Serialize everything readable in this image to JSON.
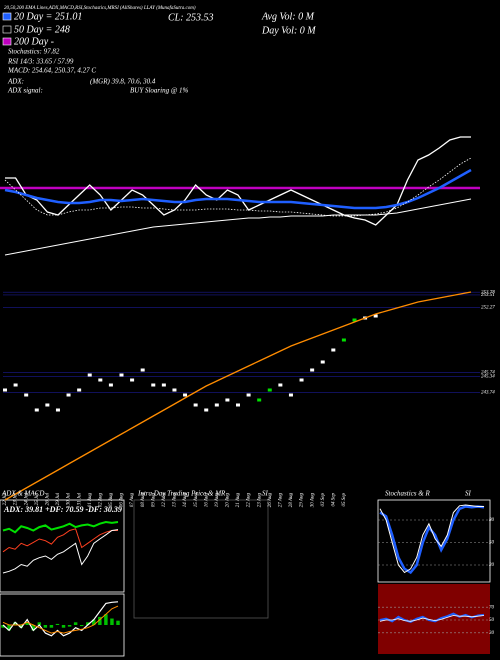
{
  "header": {
    "caption": "20,50,200 EMA Lines,ADX,MACD,RSI,Stochastics,MRSI (AllShares) LLAY (MunafaSutra.com)",
    "ema20": "20 Day = 251.01",
    "ema50": "50 Day = 248",
    "ema200": "200 Day -",
    "stochastics": "Stochastics: 97.82",
    "rsi": "RSI 14/3: 33.65 / 57.99",
    "macd": "MACD: 254.64, 250.37, 4.27 C",
    "adx": "ADX:",
    "adx_values": "(MGR) 39.8, 70.6, 30.4",
    "adx_signal": "ADX  signal:",
    "signal": "BUY Sloaring @ 1%",
    "close": "CL: 253.53",
    "avg_vol": "Avg Vol: 0  M",
    "day_vol": "Day Vol: 0  M"
  },
  "chart_data": [
    {
      "type": "line",
      "ylim": [
        243,
        258
      ],
      "reference_line": {
        "value": 250.2,
        "color": "#c000c0"
      },
      "series": [
        {
          "color": "#ffffff",
          "width": 1.3,
          "values": [
            251.2,
            251.2,
            249.5,
            249,
            247.8,
            247.5,
            248.5,
            249.5,
            250.5,
            249.5,
            248,
            249,
            250,
            249.5,
            248.5,
            247.5,
            248,
            249,
            250.5,
            249.5,
            249,
            250,
            249.5,
            248,
            248.5,
            249,
            249.5,
            250,
            249.5,
            249,
            248.5,
            248,
            247.5,
            247.2,
            247,
            246.5,
            247.5,
            248.5,
            251,
            253,
            253.5,
            254.2,
            255,
            255.3,
            255.3
          ]
        },
        {
          "color": "#1f5fff",
          "width": 2.5,
          "values": [
            250,
            249.8,
            249.5,
            249.2,
            249,
            248.8,
            248.7,
            248.7,
            248.8,
            249,
            249,
            248.9,
            249,
            249.1,
            249,
            248.9,
            248.8,
            248.8,
            249,
            249.1,
            249.1,
            249.1,
            249,
            248.9,
            248.8,
            248.8,
            248.8,
            248.8,
            248.7,
            248.6,
            248.5,
            248.4,
            248.3,
            248.2,
            248.2,
            248.2,
            248.3,
            248.5,
            248.8,
            249.2,
            249.7,
            250.2,
            250.8,
            251.4,
            252
          ]
        },
        {
          "color": "#ffffff",
          "width": 0.8,
          "dash": true,
          "values": [
            251,
            250,
            249,
            248,
            247.5,
            247.5,
            247.8,
            248,
            248,
            248.2,
            248.2,
            248.3,
            248.3,
            248.2,
            248.2,
            248.1,
            248,
            248,
            248,
            248.1,
            248.1,
            248.1,
            248,
            248,
            247.9,
            247.9,
            247.8,
            247.8,
            247.7,
            247.6,
            247.5,
            247.4,
            247.4,
            247.4,
            247.5,
            247.6,
            247.8,
            248.2,
            248.8,
            249.5,
            250.3,
            251,
            251.8,
            252.6,
            253.2
          ]
        },
        {
          "color": "#ffffff",
          "width": 1,
          "values": [
            243.5,
            243.7,
            243.9,
            244.1,
            244.3,
            244.5,
            244.7,
            244.9,
            245.1,
            245.3,
            245.5,
            245.7,
            245.9,
            246.1,
            246.3,
            246.4,
            246.5,
            246.6,
            246.7,
            246.8,
            246.9,
            247,
            247.1,
            247.2,
            247.2,
            247.3,
            247.3,
            247.4,
            247.4,
            247.4,
            247.4,
            247.5,
            247.5,
            247.5,
            247.5,
            247.5,
            247.6,
            247.7,
            247.9,
            248.1,
            248.3,
            248.5,
            248.7,
            248.9,
            249.1
          ]
        }
      ]
    },
    {
      "type": "line",
      "ylim": [
        234,
        256
      ],
      "yticks": [
        253.78,
        253.51,
        252.27,
        245.74,
        245.34,
        243.74
      ],
      "grid": true,
      "categories": [
        "22 Jul",
        "23 Jul",
        "24 Jul",
        "25 Jul",
        "26 Jul",
        "29 Jul",
        "30 Jul",
        "31 Jul",
        "01 Aug",
        "02 Aug",
        "05 Aug",
        "06 Aug",
        "07 Aug",
        "08 Aug",
        "09 Aug",
        "12 Aug",
        "13 Aug",
        "14 Aug",
        "15 Aug",
        "16 Aug",
        "19 Aug",
        "20 Aug",
        "21 Aug",
        "22 Aug",
        "23 Aug",
        "26 Aug",
        "27 Aug",
        "28 Aug",
        "29 Aug",
        "30 Aug",
        "03 Sep",
        "04 Sep",
        "05 Sep",
        null,
        null,
        null,
        null,
        null,
        null,
        null,
        null,
        null,
        null,
        null,
        null
      ],
      "series": [
        {
          "kind": "points",
          "colors": [
            "#fff",
            "#fff",
            "#fff",
            "#fff",
            "#fff",
            "#fff",
            "#fff",
            "#fff",
            "#fff",
            "#fff",
            "#fff",
            "#fff",
            "#fff",
            "#fff",
            "#fff",
            "#fff",
            "#fff",
            "#fff",
            "#fff",
            "#fff",
            "#fff",
            "#fff",
            "#fff",
            "#fff",
            "#00e000",
            "#00e000",
            "#fff",
            "#fff",
            "#fff",
            "#fff",
            "#fff",
            "#fff",
            "#00e000",
            "#00e000",
            "#fff",
            "#fff",
            null,
            null,
            null,
            null,
            null,
            null,
            null,
            null,
            null
          ],
          "values": [
            244,
            244.5,
            243.5,
            242,
            242.5,
            242,
            243.5,
            244,
            245.5,
            245,
            244.5,
            245.5,
            245,
            246,
            244.5,
            244.5,
            244,
            243.5,
            242.5,
            242,
            242.5,
            243,
            242.5,
            243.5,
            243,
            244,
            244.5,
            243.5,
            245,
            246,
            246.8,
            248,
            249,
            251,
            251.2,
            251.4,
            null,
            null,
            null,
            null,
            null,
            null,
            null,
            null,
            null
          ]
        },
        {
          "color": "#ff8c00",
          "width": 1.3,
          "values": [
            233,
            233.6,
            234.2,
            234.8,
            235.4,
            236,
            236.6,
            237.2,
            237.8,
            238.4,
            239,
            239.6,
            240.2,
            240.8,
            241.4,
            242,
            242.6,
            243.2,
            243.8,
            244.4,
            244.9,
            245.4,
            245.9,
            246.4,
            246.9,
            247.4,
            247.9,
            248.4,
            248.8,
            249.2,
            249.6,
            250,
            250.4,
            250.8,
            251.2,
            251.6,
            251.9,
            252.2,
            252.5,
            252.8,
            253,
            253.2,
            253.4,
            253.6,
            253.8
          ]
        }
      ]
    },
    {
      "type": "line",
      "title": "ADX  & MACD",
      "label": "ADX: 39.81 +DF: 70.59 -DF: 30.39",
      "ylim": [
        0,
        100
      ],
      "series": [
        {
          "color": "#00e000",
          "width": 2,
          "values": [
            70,
            72,
            68,
            75,
            73,
            70,
            74,
            76,
            71,
            73,
            75,
            78,
            74,
            76,
            77,
            75,
            78,
            80,
            79,
            80
          ]
        },
        {
          "color": "#ff4020",
          "width": 1,
          "values": [
            45,
            50,
            48,
            55,
            52,
            56,
            60,
            58,
            54,
            62,
            65,
            70,
            72,
            50,
            55,
            60,
            65,
            68,
            70,
            70
          ]
        },
        {
          "color": "#ffffff",
          "width": 1,
          "values": [
            20,
            22,
            25,
            30,
            28,
            35,
            38,
            40,
            36,
            42,
            45,
            50,
            55,
            30,
            40,
            55,
            60,
            65,
            70,
            71
          ]
        }
      ]
    },
    {
      "type": "line",
      "ylim": [
        -5,
        5
      ],
      "series": [
        {
          "kind": "bar",
          "color": "#00c000",
          "values": [
            -0.5,
            -1,
            0.5,
            -0.5,
            0.5,
            -1,
            0.5,
            -0.5,
            -0.5,
            0.2,
            -0.5,
            -0.3,
            0.5,
            -0.2,
            0.5,
            1,
            1.5,
            2,
            1.2,
            0.8
          ]
        },
        {
          "color": "#ffffff",
          "width": 1.2,
          "values": [
            0,
            -1,
            0.5,
            -0.5,
            1,
            -1,
            0,
            -1.5,
            -2,
            -1,
            -2,
            -1.5,
            -0.5,
            -1,
            0,
            1,
            2.5,
            4,
            4.2,
            4.3
          ]
        },
        {
          "color": "#ff8c00",
          "width": 1,
          "values": [
            0.5,
            0,
            0,
            0,
            0.5,
            0,
            -0.5,
            -1,
            -1.5,
            -1.2,
            -1.5,
            -1.2,
            -1,
            -0.8,
            -0.5,
            0,
            1,
            2,
            3,
            3.5
          ]
        }
      ]
    },
    {
      "type": "line",
      "title": "Intra Day Trading Price & MR",
      "title2": "SI",
      "series": []
    },
    {
      "type": "line",
      "title": "Stochastics & R",
      "title2": "SI",
      "ylim": [
        0,
        100
      ],
      "yticks": [
        80,
        50,
        20
      ],
      "grid": true,
      "series": [
        {
          "color": "#1f5fff",
          "width": 2.5,
          "values": [
            90,
            85,
            60,
            30,
            15,
            10,
            20,
            50,
            70,
            60,
            40,
            55,
            80,
            95,
            98,
            97,
            98,
            97
          ]
        },
        {
          "color": "#ffffff",
          "width": 1,
          "values": [
            95,
            80,
            50,
            20,
            10,
            15,
            30,
            60,
            75,
            55,
            45,
            60,
            90,
            99,
            100,
            99,
            98,
            98
          ]
        }
      ]
    },
    {
      "type": "line",
      "ylim": [
        0,
        100
      ],
      "yticks": [
        70,
        50,
        30
      ],
      "grid": true,
      "background": "#800000",
      "series": [
        {
          "color": "#1f5fff",
          "width": 2,
          "values": [
            50,
            52,
            48,
            55,
            50,
            47,
            52,
            55,
            50,
            48,
            53,
            56,
            60,
            55,
            58,
            54,
            57,
            58
          ]
        },
        {
          "color": "#ffffff",
          "width": 0.8,
          "values": [
            48,
            50,
            50,
            52,
            49,
            48,
            50,
            53,
            51,
            49,
            51,
            54,
            57,
            56,
            56,
            55,
            56,
            57
          ]
        }
      ]
    }
  ]
}
